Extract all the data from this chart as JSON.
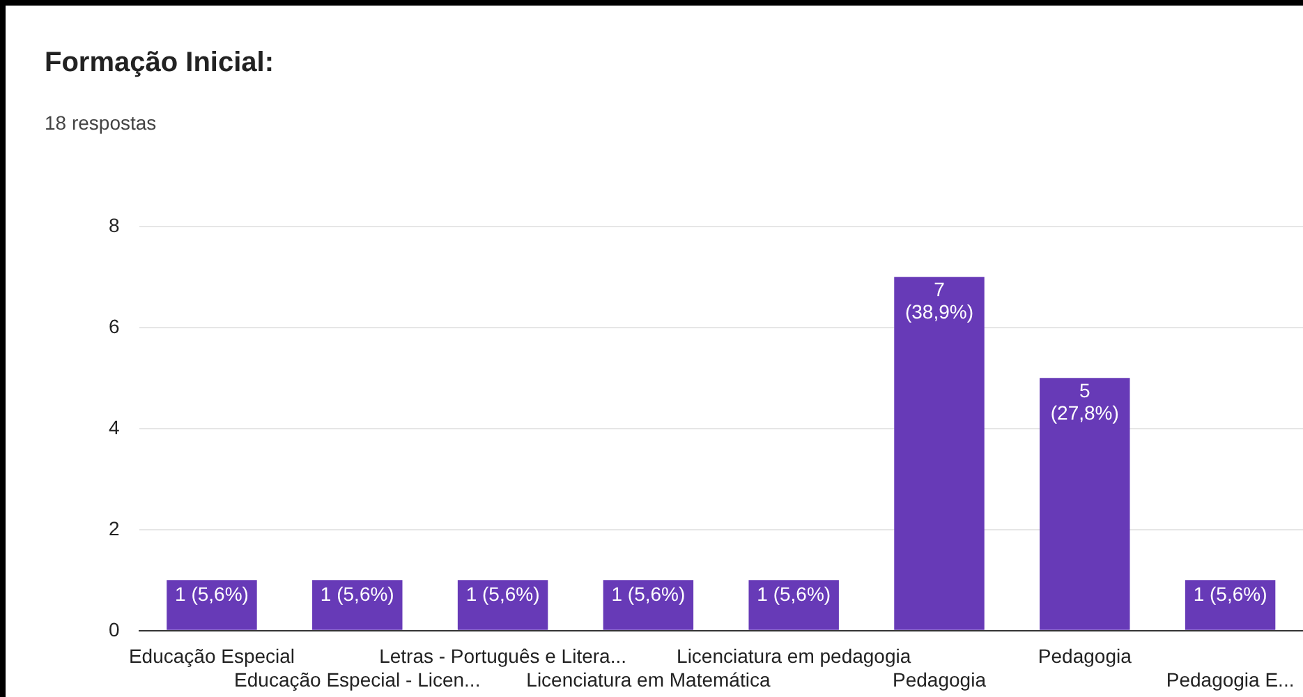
{
  "chart_data": {
    "type": "bar",
    "title": "Formação Inicial:",
    "subtitle": "18 respostas",
    "categories": [
      "Educação Especial",
      "Educação Especial - Licen...",
      "Letras - Português e Litera...",
      "Licenciatura em Matemática",
      "Licenciatura em pedagogia",
      "Pedagogia",
      "Pedagogia",
      "Pedagogia E..."
    ],
    "values": [
      1,
      1,
      1,
      1,
      1,
      7,
      5,
      1
    ],
    "color": "#673ab7",
    "value_labels": [
      "1 (5,6%)",
      "1 (5,6%)",
      "1 (5,6%)",
      "1 (5,6%)",
      "1 (5,6%)",
      "7 (38,9%)",
      "5 (27,8%)",
      "1 (5,6%)"
    ],
    "ylim": [
      0,
      8
    ],
    "yticks": [
      0,
      2,
      4,
      6,
      8
    ],
    "grid": "y",
    "legend": false
  }
}
